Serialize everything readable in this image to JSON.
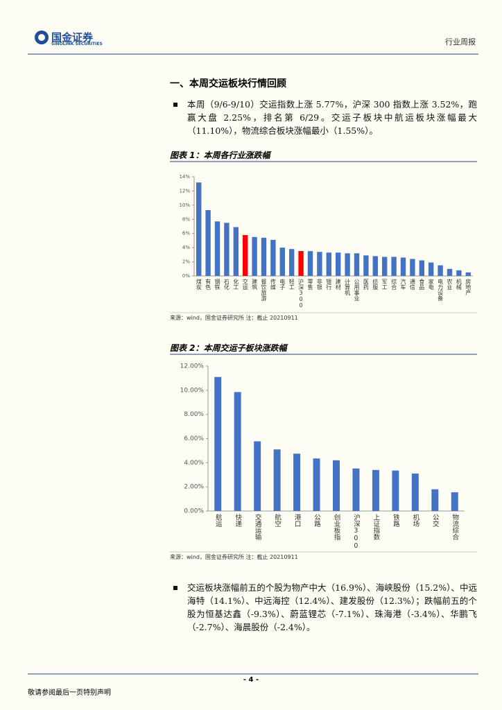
{
  "header": {
    "logo_cn": "国金证券",
    "logo_en": "SINOLINK SECURITIES",
    "doc_type": "行业周报"
  },
  "section_title": "一、本周交运板块行情回顾",
  "paragraphs": [
    "本周（9/6-9/10）交运指数上涨 5.77%，沪深 300 指数上涨 3.52%，跑赢大盘 2.25%，排名第 6/29。交运子板块中航运板块涨幅最大（11.10%），物流综合板块涨幅最小（1.55%）。",
    "交运板块涨幅前五的个股为物产中大（16.9%）、海峡股份（15.2%）、中远海特（14.1%）、中远海控（12.4%）、建发股份（12.3%）；跌幅前五的个股为恒基达鑫（-9.3%）、蔚蓝锂芯（-7.1%）、珠海港（-3.4%）、华鹏飞（-2.7%）、海晨股份（-2.4%）。"
  ],
  "chart_data": [
    {
      "type": "bar",
      "title": "图表 1：本周各行业涨跌幅",
      "source": "来源：wind，国金证券研究所 注：截止 20210911",
      "categories": [
        "煤炭",
        "有色",
        "钢铁",
        "石化",
        "化工",
        "交运",
        "建筑",
        "餐饮旅游",
        "传媒",
        "电子",
        "轻工",
        "沪深300",
        "零售",
        "非银",
        "银行",
        "建材",
        "计算机",
        "公用事业",
        "医药",
        "纺服",
        "军工",
        "综合",
        "汽车",
        "通信",
        "食品",
        "家电",
        "电力设备",
        "农业",
        "机械",
        "房地产"
      ],
      "values": [
        13.2,
        9.3,
        7.7,
        7.5,
        6.9,
        5.77,
        5.5,
        5.4,
        5.1,
        4.0,
        3.8,
        3.52,
        3.5,
        3.4,
        3.3,
        3.3,
        3.2,
        3.2,
        2.9,
        2.8,
        2.7,
        2.7,
        2.6,
        2.4,
        2.2,
        1.9,
        1.5,
        1.0,
        0.8,
        0.5
      ],
      "colors": [
        "#4472c4",
        "#4472c4",
        "#4472c4",
        "#4472c4",
        "#4472c4",
        "#ff0000",
        "#4472c4",
        "#4472c4",
        "#4472c4",
        "#4472c4",
        "#4472c4",
        "#ff0000",
        "#4472c4",
        "#4472c4",
        "#4472c4",
        "#4472c4",
        "#4472c4",
        "#4472c4",
        "#4472c4",
        "#4472c4",
        "#4472c4",
        "#4472c4",
        "#4472c4",
        "#4472c4",
        "#4472c4",
        "#4472c4",
        "#4472c4",
        "#4472c4",
        "#4472c4",
        "#4472c4"
      ],
      "ylim": [
        0,
        14
      ],
      "yticks": [
        {
          "value": 0,
          "label": "0%"
        },
        {
          "value": 2,
          "label": "2%"
        },
        {
          "value": 4,
          "label": "4%"
        },
        {
          "value": 6,
          "label": "6%"
        },
        {
          "value": 8,
          "label": "8%"
        },
        {
          "value": 10,
          "label": "10%"
        },
        {
          "value": 12,
          "label": "12%"
        },
        {
          "value": 14,
          "label": "14%"
        }
      ]
    },
    {
      "type": "bar",
      "title": "图表 2：本周交运子板块涨跌幅",
      "source": "来源：wind，国金证券研究所 注：截止 20210911",
      "categories": [
        "航运",
        "快递",
        "交通运输",
        "航空",
        "港口",
        "公路",
        "创业板指",
        "沪深300",
        "上证指数",
        "铁路",
        "机场",
        "公交",
        "物流综合"
      ],
      "values": [
        11.1,
        9.85,
        5.77,
        5.1,
        4.75,
        4.35,
        4.2,
        3.52,
        3.4,
        3.35,
        3.1,
        1.8,
        1.55
      ],
      "color": "#4472c4",
      "ylim": [
        0,
        12
      ],
      "yticks": [
        {
          "value": 0,
          "label": "0.00%"
        },
        {
          "value": 2,
          "label": "2.00%"
        },
        {
          "value": 4,
          "label": "4.00%"
        },
        {
          "value": 6,
          "label": "6.00%"
        },
        {
          "value": 8,
          "label": "8.00%"
        },
        {
          "value": 10,
          "label": "10.00%"
        },
        {
          "value": 12,
          "label": "12.00%"
        }
      ]
    }
  ],
  "footer": {
    "page": "- 4 -",
    "note": "敬请参阅最后一页特别声明"
  }
}
